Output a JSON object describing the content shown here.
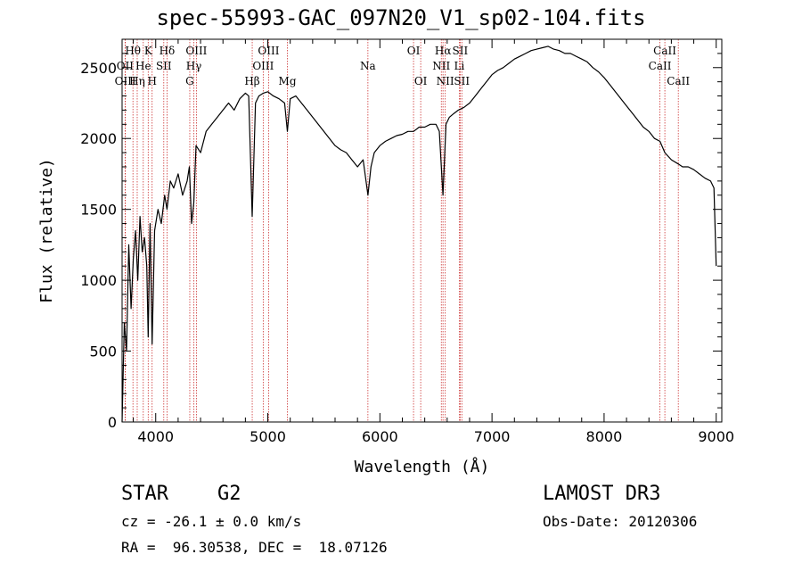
{
  "chart_data": {
    "type": "line",
    "title": "spec-55993-GAC_097N20_V1_sp02-104.fits",
    "xlabel": "Wavelength (Å)",
    "ylabel": "Flux (relative)",
    "xlim": [
      3700,
      9050
    ],
    "ylim": [
      0,
      2700
    ],
    "xticks": [
      4000,
      5000,
      6000,
      7000,
      8000,
      9000
    ],
    "xtick_labels": [
      "4000",
      "5000",
      "6000",
      "7000",
      "8000",
      "9000"
    ],
    "yticks": [
      0,
      500,
      1000,
      1500,
      2000,
      2500
    ],
    "ytick_labels": [
      "0",
      "500",
      "1000",
      "1500",
      "2000",
      "2500"
    ],
    "series": [
      {
        "name": "spectrum",
        "x": [
          3700,
          3720,
          3740,
          3760,
          3780,
          3800,
          3820,
          3840,
          3860,
          3880,
          3900,
          3920,
          3933,
          3950,
          3968,
          3990,
          4020,
          4050,
          4080,
          4101,
          4130,
          4160,
          4200,
          4240,
          4280,
          4300,
          4320,
          4340,
          4360,
          4400,
          4450,
          4500,
          4550,
          4600,
          4650,
          4700,
          4750,
          4800,
          4830,
          4861,
          4890,
          4920,
          4960,
          5000,
          5050,
          5100,
          5150,
          5175,
          5200,
          5250,
          5300,
          5350,
          5400,
          5450,
          5500,
          5550,
          5600,
          5650,
          5700,
          5750,
          5800,
          5850,
          5893,
          5920,
          5950,
          6000,
          6050,
          6100,
          6150,
          6200,
          6250,
          6300,
          6350,
          6400,
          6450,
          6500,
          6530,
          6563,
          6590,
          6620,
          6650,
          6700,
          6750,
          6800,
          6850,
          6900,
          6950,
          7000,
          7050,
          7100,
          7150,
          7200,
          7250,
          7300,
          7350,
          7400,
          7450,
          7500,
          7550,
          7600,
          7650,
          7700,
          7750,
          7800,
          7850,
          7900,
          7950,
          8000,
          8050,
          8100,
          8150,
          8200,
          8250,
          8300,
          8350,
          8400,
          8450,
          8498,
          8542,
          8600,
          8662,
          8700,
          8750,
          8800,
          8850,
          8900,
          8950,
          8980,
          9000
        ],
        "y": [
          0,
          700,
          500,
          1250,
          800,
          1150,
          1350,
          1000,
          1450,
          1200,
          1300,
          1100,
          600,
          1400,
          550,
          1350,
          1500,
          1400,
          1600,
          1500,
          1700,
          1650,
          1750,
          1600,
          1700,
          1800,
          1400,
          1550,
          1950,
          1900,
          2050,
          2100,
          2150,
          2200,
          2250,
          2200,
          2280,
          2320,
          2300,
          1450,
          2250,
          2300,
          2320,
          2330,
          2300,
          2280,
          2250,
          2050,
          2280,
          2300,
          2250,
          2200,
          2150,
          2100,
          2050,
          2000,
          1950,
          1920,
          1900,
          1850,
          1800,
          1850,
          1600,
          1800,
          1900,
          1950,
          1980,
          2000,
          2020,
          2030,
          2050,
          2050,
          2080,
          2080,
          2100,
          2100,
          2050,
          1600,
          2100,
          2150,
          2170,
          2200,
          2220,
          2250,
          2300,
          2350,
          2400,
          2450,
          2480,
          2500,
          2530,
          2560,
          2580,
          2600,
          2620,
          2630,
          2640,
          2650,
          2630,
          2620,
          2600,
          2600,
          2580,
          2560,
          2540,
          2500,
          2470,
          2430,
          2380,
          2330,
          2280,
          2230,
          2180,
          2130,
          2080,
          2050,
          2000,
          1980,
          1900,
          1850,
          1820,
          1800,
          1800,
          1780,
          1750,
          1720,
          1700,
          1650,
          1100
        ]
      }
    ],
    "spectral_lines": [
      {
        "label": "Hθ",
        "x": 3797,
        "row": 0
      },
      {
        "label": "OII",
        "x": 3727,
        "row": 1
      },
      {
        "label": "OIII",
        "x": 3729,
        "row": 2
      },
      {
        "label": "He",
        "x": 3889,
        "row": 1
      },
      {
        "label": "Hη",
        "x": 3835,
        "row": 2
      },
      {
        "label": "K",
        "x": 3933,
        "row": 0
      },
      {
        "label": "SII",
        "x": 4072,
        "row": 1
      },
      {
        "label": "H",
        "x": 3968,
        "row": 2
      },
      {
        "label": "Hδ",
        "x": 4101,
        "row": 0
      },
      {
        "label": "OIII",
        "x": 4363,
        "row": 0
      },
      {
        "label": "Hγ",
        "x": 4340,
        "row": 1
      },
      {
        "label": "G",
        "x": 4304,
        "row": 2
      },
      {
        "label": "Hβ",
        "x": 4861,
        "row": 2
      },
      {
        "label": "OIII",
        "x": 5007,
        "row": 0
      },
      {
        "label": "OIII",
        "x": 4959,
        "row": 1
      },
      {
        "label": "Mg",
        "x": 5175,
        "row": 2
      },
      {
        "label": "Na",
        "x": 5893,
        "row": 1
      },
      {
        "label": "OI",
        "x": 6300,
        "row": 0
      },
      {
        "label": "OI",
        "x": 6364,
        "row": 2
      },
      {
        "label": "Hα",
        "x": 6563,
        "row": 0
      },
      {
        "label": "SII",
        "x": 6716,
        "row": 0
      },
      {
        "label": "NII",
        "x": 6548,
        "row": 1
      },
      {
        "label": "Li",
        "x": 6708,
        "row": 1
      },
      {
        "label": "NII",
        "x": 6583,
        "row": 2
      },
      {
        "label": "SII",
        "x": 6731,
        "row": 2
      },
      {
        "label": "CaII",
        "x": 8542,
        "row": 0
      },
      {
        "label": "CaII",
        "x": 8498,
        "row": 1
      },
      {
        "label": "CaII",
        "x": 8662,
        "row": 2
      }
    ]
  },
  "info": {
    "class_label": "STAR",
    "subclass": "G2",
    "survey": "LAMOST DR3",
    "cz": "cz = -26.1 ± 0.0 km/s",
    "obs_date": "Obs-Date: 20120306",
    "coords": "RA =  96.30538, DEC =  18.07126"
  },
  "colors": {
    "line": "#000000",
    "marker": "#cc3333",
    "background": "#ffffff"
  }
}
